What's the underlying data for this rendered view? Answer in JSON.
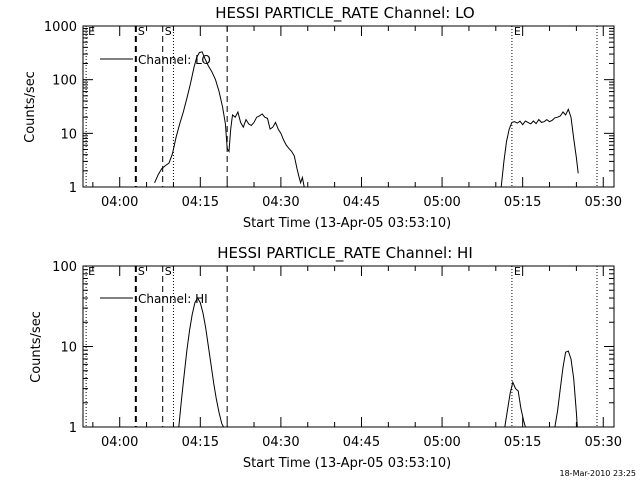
{
  "footer_timestamp": "18-Mar-2010 23:25",
  "chart_data": [
    {
      "type": "line",
      "title": "HESSI PARTICLE_RATE Channel: LO",
      "xlabel": "Start Time (13-Apr-05 03:53:10)",
      "ylabel": "Counts/sec",
      "y_scale": "log",
      "xlim": [
        "03:53:10",
        "05:32:00"
      ],
      "ylim": [
        1,
        1000
      ],
      "x_ticks": [
        "04:00",
        "04:15",
        "04:30",
        "04:45",
        "05:00",
        "05:15",
        "05:30"
      ],
      "y_ticks": [
        "1",
        "10",
        "100",
        "1000"
      ],
      "legend": {
        "label": "Channel: LO",
        "placement": "top-left"
      },
      "event_markers": [
        {
          "time": "03:53:45",
          "label": "E",
          "style": "dotted"
        },
        {
          "time": "04:03:00",
          "label": "S",
          "style": "thick-dashed"
        },
        {
          "time": "04:08:00",
          "label": "S",
          "style": "dashed"
        },
        {
          "time": "04:10:00",
          "label": "",
          "style": "dotted"
        },
        {
          "time": "04:20:00",
          "label": "",
          "style": "dashed"
        },
        {
          "time": "05:13:00",
          "label": "E",
          "style": "dotted"
        },
        {
          "time": "05:28:50",
          "label": "",
          "style": "dotted"
        }
      ],
      "series": [
        {
          "name": "Channel: LO",
          "segments": [
            {
              "x": [
                "04:06:30",
                "04:07:10",
                "04:07:50",
                "04:08:30",
                "04:09:10",
                "04:09:50",
                "04:10:30",
                "04:11:10",
                "04:11:50",
                "04:12:30",
                "04:13:10",
                "04:13:50",
                "04:14:20",
                "04:14:50",
                "04:15:20",
                "04:15:50",
                "04:16:30",
                "04:17:10",
                "04:17:50",
                "04:18:30",
                "04:19:10",
                "04:19:40",
                "04:20:00",
                "04:20:20",
                "04:20:40",
                "04:21:00",
                "04:21:30",
                "04:22:00",
                "04:22:30",
                "04:23:00",
                "04:23:30",
                "04:24:00",
                "04:24:30",
                "04:25:00",
                "04:25:30",
                "04:26:00",
                "04:26:30",
                "04:27:00",
                "04:27:30",
                "04:28:00",
                "04:28:30",
                "04:29:00",
                "04:29:30",
                "04:30:00",
                "04:30:30",
                "04:31:00",
                "04:31:30",
                "04:32:00",
                "04:32:30",
                "04:33:00",
                "04:33:20",
                "04:33:40",
                "04:34:00",
                "04:34:20"
              ],
              "y": [
                1.2,
                1.7,
                2.2,
                2.5,
                2.8,
                4.2,
                8.5,
                15,
                25,
                45,
                85,
                170,
                260,
                320,
                330,
                250,
                180,
                140,
                100,
                60,
                30,
                15,
                5.2,
                4.6,
                12,
                22,
                20,
                25,
                16,
                13,
                18,
                15,
                14,
                16,
                20,
                21,
                23,
                20,
                19,
                12,
                13,
                16,
                12,
                10,
                7.5,
                6,
                5.2,
                4.6,
                3.8,
                2.2,
                1.6,
                1.2,
                1.5,
                1.0
              ]
            },
            {
              "x": [
                "05:11:00",
                "05:11:30",
                "05:12:00",
                "05:12:30",
                "05:13:00",
                "05:13:30",
                "05:14:00",
                "05:14:30",
                "05:15:00",
                "05:15:30",
                "05:16:00",
                "05:16:30",
                "05:17:00",
                "05:17:30",
                "05:18:00",
                "05:18:30",
                "05:19:00",
                "05:19:30",
                "05:20:00",
                "05:20:30",
                "05:21:00",
                "05:21:30",
                "05:22:00",
                "05:22:30",
                "05:23:00",
                "05:23:30",
                "05:24:00",
                "05:24:30",
                "05:25:00",
                "05:25:20"
              ],
              "y": [
                1.0,
                3,
                7,
                12,
                16,
                16.5,
                15.5,
                16.8,
                14.5,
                17,
                16,
                15,
                17,
                15.2,
                18,
                16,
                16.5,
                18,
                16.5,
                17.5,
                19.5,
                20,
                21,
                25,
                22,
                28,
                20,
                8,
                3.5,
                1.8
              ]
            }
          ]
        }
      ]
    },
    {
      "type": "line",
      "title": "HESSI PARTICLE_RATE Channel: HI",
      "xlabel": "Start Time (13-Apr-05 03:53:10)",
      "ylabel": "Counts/sec",
      "y_scale": "log",
      "xlim": [
        "03:53:10",
        "05:32:00"
      ],
      "ylim": [
        1,
        100
      ],
      "x_ticks": [
        "04:00",
        "04:15",
        "04:30",
        "04:45",
        "05:00",
        "05:15",
        "05:30"
      ],
      "y_ticks": [
        "1",
        "10",
        "100"
      ],
      "legend": {
        "label": "Channel: HI",
        "placement": "top-left"
      },
      "event_markers": [
        {
          "time": "03:53:45",
          "label": "E",
          "style": "dotted"
        },
        {
          "time": "04:03:00",
          "label": "S",
          "style": "thick-dashed"
        },
        {
          "time": "04:08:00",
          "label": "S",
          "style": "dashed"
        },
        {
          "time": "04:10:00",
          "label": "",
          "style": "dotted"
        },
        {
          "time": "04:20:00",
          "label": "",
          "style": "dashed"
        },
        {
          "time": "05:13:00",
          "label": "E",
          "style": "dotted"
        },
        {
          "time": "05:28:50",
          "label": "",
          "style": "dotted"
        }
      ],
      "series": [
        {
          "name": "Channel: HI",
          "segments": [
            {
              "x": [
                "04:11:00",
                "04:11:30",
                "04:12:00",
                "04:12:30",
                "04:13:00",
                "04:13:30",
                "04:14:00",
                "04:14:30",
                "04:15:00",
                "04:15:30",
                "04:16:00",
                "04:16:30",
                "04:17:00",
                "04:17:30",
                "04:18:00",
                "04:18:30",
                "04:19:00",
                "04:19:20"
              ],
              "y": [
                1.0,
                2.2,
                4.5,
                9,
                16,
                25,
                35,
                40,
                35,
                26,
                17,
                10,
                6,
                3.5,
                2.2,
                1.5,
                1.1,
                1.0
              ]
            },
            {
              "x": [
                "05:11:40",
                "05:12:10",
                "05:12:40",
                "05:13:10",
                "05:13:40",
                "05:14:10",
                "05:14:40",
                "05:15:10",
                "05:15:30"
              ],
              "y": [
                1.0,
                1.6,
                2.6,
                3.6,
                3.0,
                2.8,
                1.7,
                1.2,
                1.0
              ]
            },
            {
              "x": [
                "05:21:00",
                "05:21:30",
                "05:22:00",
                "05:22:30",
                "05:23:00",
                "05:23:30",
                "05:24:00",
                "05:24:30",
                "05:25:00",
                "05:25:10"
              ],
              "y": [
                1.0,
                1.6,
                3.0,
                5.5,
                8.5,
                8.8,
                7.0,
                4.0,
                1.5,
                1.0
              ]
            }
          ]
        }
      ]
    }
  ]
}
